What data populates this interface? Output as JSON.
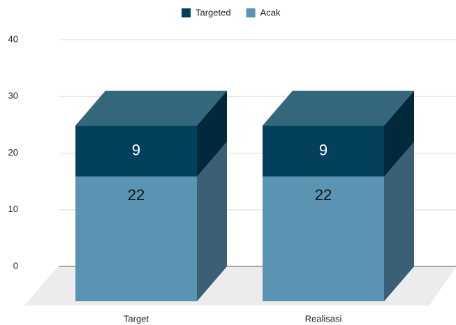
{
  "chart_data": {
    "type": "bar3d-stacked",
    "categories": [
      "Target",
      "Realisasi"
    ],
    "series": [
      {
        "name": "Acak",
        "color": "#5b93b3",
        "values": [
          22,
          22
        ]
      },
      {
        "name": "Targeted",
        "color": "#02405c",
        "values": [
          9,
          9
        ]
      }
    ],
    "ylim": [
      0,
      40
    ],
    "yticks": [
      0,
      10,
      20,
      30,
      40
    ],
    "grid": true,
    "legend": "top"
  }
}
